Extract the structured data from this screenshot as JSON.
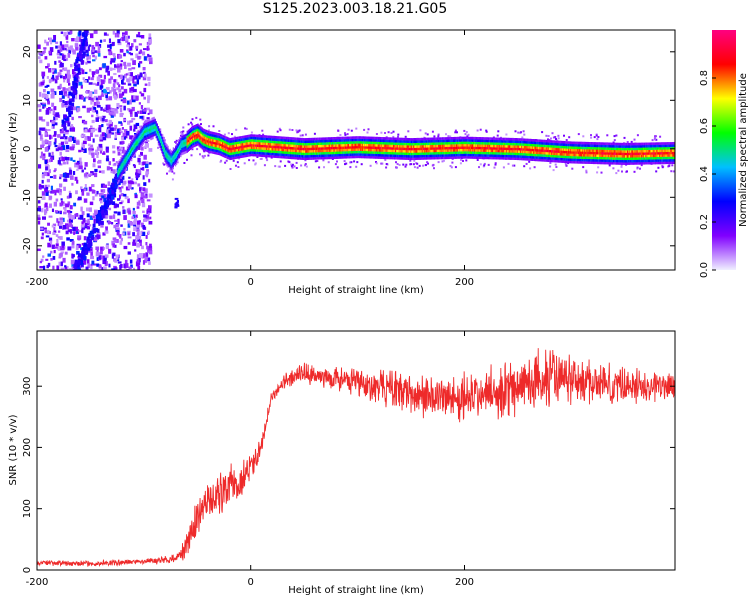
{
  "figure": {
    "title": "S125.2023.003.18.21.G05"
  },
  "chart_data": [
    {
      "type": "heatmap",
      "title": "S125.2023.003.18.21.G05",
      "xlabel": "Height of straight line (km)",
      "ylabel": "Frequency (Hz)",
      "xlim": [
        -200,
        397
      ],
      "ylim": [
        -25,
        24.5
      ],
      "xticks": [
        -200,
        0,
        200
      ],
      "yticks": [
        -20,
        -10,
        0,
        10,
        20
      ],
      "colorbar": {
        "label": "Normalized spectral amplitude",
        "range": [
          0.0,
          1.0
        ],
        "ticks": [
          0.0,
          0.2,
          0.4,
          0.6,
          0.8
        ],
        "colors": [
          "#f0f0ff",
          "#8000ff",
          "#0000ff",
          "#00c0ff",
          "#00ff00",
          "#ffff00",
          "#ff0000",
          "#ff0080"
        ]
      },
      "ridge": {
        "x": [
          -125,
          -110,
          -100,
          -90,
          -85,
          -80,
          -75,
          -70,
          -65,
          -60,
          -55,
          -50,
          -45,
          -40,
          -30,
          -20,
          0,
          50,
          100,
          150,
          200,
          250,
          300,
          350,
          397
        ],
        "y": [
          -5,
          0.5,
          3.5,
          4.5,
          2,
          -1,
          -2.5,
          -1,
          1,
          1.5,
          2.5,
          3,
          2,
          1.5,
          1,
          0,
          0.8,
          0,
          0.4,
          0,
          0.3,
          0,
          -0.7,
          -1,
          -0.8
        ],
        "peak_amplitude": 0.95
      }
    },
    {
      "type": "line",
      "xlabel": "Height of straight line (km)",
      "ylabel": "SNR (10 * v/v)",
      "xlim": [
        -200,
        397
      ],
      "ylim": [
        0,
        390
      ],
      "xticks": [
        -200,
        0,
        200
      ],
      "yticks": [
        0,
        100,
        200,
        300
      ],
      "series": [
        {
          "color": "#ee2a2a",
          "x": [
            -200,
            -150,
            -100,
            -70,
            -60,
            -50,
            -40,
            -30,
            -20,
            -10,
            0,
            10,
            15,
            20,
            30,
            40,
            50,
            60,
            70,
            80,
            100,
            130,
            160,
            200,
            230,
            260,
            280,
            300,
            330,
            360,
            397
          ],
          "values": [
            12,
            10,
            14,
            18,
            40,
            85,
            110,
            125,
            135,
            140,
            170,
            200,
            250,
            285,
            305,
            315,
            320,
            318,
            315,
            312,
            305,
            295,
            285,
            280,
            290,
            305,
            315,
            310,
            305,
            300,
            300
          ],
          "noise_amplitude": [
            5,
            5,
            6,
            8,
            25,
            35,
            40,
            40,
            40,
            35,
            30,
            25,
            20,
            15,
            15,
            20,
            20,
            20,
            20,
            25,
            30,
            35,
            40,
            45,
            50,
            55,
            55,
            45,
            40,
            35,
            30
          ]
        }
      ]
    }
  ]
}
